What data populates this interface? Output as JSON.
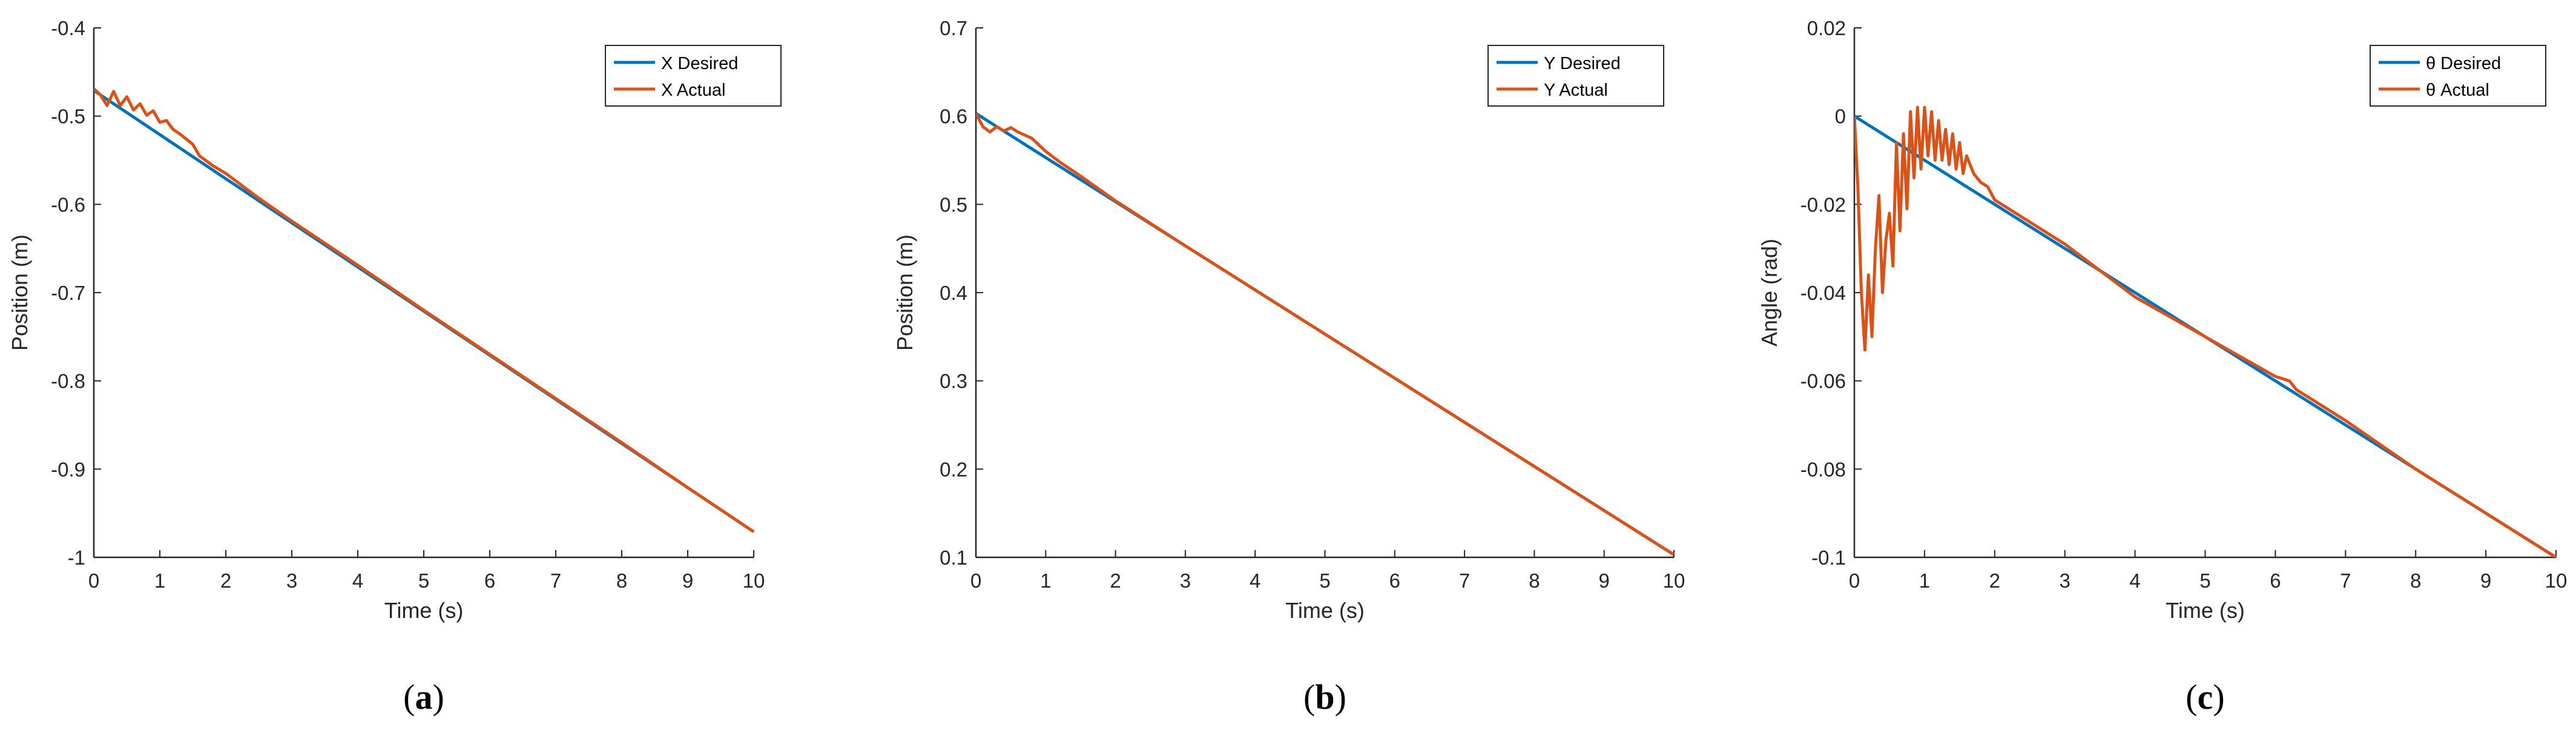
{
  "figure": {
    "panels": [
      {
        "id": "a",
        "caption": "(a)"
      },
      {
        "id": "b",
        "caption": "(b)"
      },
      {
        "id": "c",
        "caption": "(c)"
      }
    ]
  },
  "colors": {
    "desired": "#0072BD",
    "actual": "#D95319",
    "axis": "#262626"
  },
  "chart_data": [
    {
      "type": "line",
      "panel": "a",
      "xlabel": "Time (s)",
      "ylabel": "Position (m)",
      "xlim": [
        0,
        10
      ],
      "ylim": [
        -1,
        -0.4
      ],
      "xticks": [
        0,
        1,
        2,
        3,
        4,
        5,
        6,
        7,
        8,
        9,
        10
      ],
      "yticks": [
        -1,
        -0.9,
        -0.8,
        -0.7,
        -0.6,
        -0.5,
        -0.4
      ],
      "grid": false,
      "legend_position": "top-right",
      "series": [
        {
          "name": "X Desired",
          "color": "#0072BD",
          "x": [
            0,
            10
          ],
          "y": [
            -0.471,
            -0.971
          ]
        },
        {
          "name": "X Actual",
          "color": "#D95319",
          "x": [
            0,
            0.1,
            0.2,
            0.3,
            0.4,
            0.5,
            0.6,
            0.7,
            0.8,
            0.9,
            1.0,
            1.1,
            1.2,
            1.3,
            1.4,
            1.5,
            1.6,
            1.8,
            2.0,
            2.5,
            3,
            4,
            5,
            6,
            7,
            8,
            9,
            10
          ],
          "y": [
            -0.469,
            -0.476,
            -0.488,
            -0.472,
            -0.488,
            -0.478,
            -0.493,
            -0.486,
            -0.499,
            -0.494,
            -0.507,
            -0.505,
            -0.515,
            -0.52,
            -0.526,
            -0.532,
            -0.545,
            -0.556,
            -0.565,
            -0.593,
            -0.619,
            -0.669,
            -0.72,
            -0.77,
            -0.82,
            -0.87,
            -0.921,
            -0.971
          ]
        }
      ]
    },
    {
      "type": "line",
      "panel": "b",
      "xlabel": "Time (s)",
      "ylabel": "Position (m)",
      "xlim": [
        0,
        10
      ],
      "ylim": [
        0.1,
        0.7
      ],
      "xticks": [
        0,
        1,
        2,
        3,
        4,
        5,
        6,
        7,
        8,
        9,
        10
      ],
      "yticks": [
        0.1,
        0.2,
        0.3,
        0.4,
        0.5,
        0.6,
        0.7
      ],
      "grid": false,
      "legend_position": "top-right",
      "series": [
        {
          "name": "Y Desired",
          "color": "#0072BD",
          "x": [
            0,
            10
          ],
          "y": [
            0.603,
            0.103
          ]
        },
        {
          "name": "Y Actual",
          "color": "#D95319",
          "x": [
            0,
            0.1,
            0.2,
            0.3,
            0.4,
            0.5,
            0.6,
            0.8,
            1.0,
            1.2,
            1.5,
            2.0,
            3,
            4,
            5,
            6,
            7,
            8,
            9,
            10
          ],
          "y": [
            0.603,
            0.588,
            0.582,
            0.588,
            0.583,
            0.587,
            0.582,
            0.575,
            0.56,
            0.548,
            0.532,
            0.504,
            0.453,
            0.403,
            0.353,
            0.303,
            0.253,
            0.203,
            0.153,
            0.103
          ]
        }
      ]
    },
    {
      "type": "line",
      "panel": "c",
      "xlabel": "Time (s)",
      "ylabel": "Angle (rad)",
      "xlim": [
        0,
        10
      ],
      "ylim": [
        -0.1,
        0.02
      ],
      "xticks": [
        0,
        1,
        2,
        3,
        4,
        5,
        6,
        7,
        8,
        9,
        10
      ],
      "yticks": [
        -0.1,
        -0.08,
        -0.06,
        -0.04,
        -0.02,
        0,
        0.02
      ],
      "grid": false,
      "legend_position": "top-right",
      "series": [
        {
          "name": "θ Desired",
          "color": "#0072BD",
          "x": [
            0,
            10
          ],
          "y": [
            0,
            -0.1
          ]
        },
        {
          "name": "θ Actual",
          "color": "#D95319",
          "x": [
            0,
            0.05,
            0.1,
            0.15,
            0.2,
            0.25,
            0.3,
            0.35,
            0.4,
            0.45,
            0.5,
            0.55,
            0.6,
            0.65,
            0.7,
            0.75,
            0.8,
            0.85,
            0.9,
            0.95,
            1.0,
            1.05,
            1.1,
            1.15,
            1.2,
            1.25,
            1.3,
            1.35,
            1.4,
            1.45,
            1.5,
            1.55,
            1.6,
            1.7,
            1.8,
            1.9,
            2.0,
            2.2,
            2.5,
            3.0,
            3.5,
            4.0,
            5.0,
            6.0,
            6.2,
            6.3,
            7.0,
            8.0,
            9.0,
            10.0
          ],
          "y": [
            0,
            -0.016,
            -0.04,
            -0.053,
            -0.036,
            -0.05,
            -0.03,
            -0.018,
            -0.04,
            -0.028,
            -0.022,
            -0.034,
            -0.006,
            -0.026,
            -0.004,
            -0.021,
            0.001,
            -0.014,
            0.002,
            -0.012,
            0.002,
            -0.009,
            0.001,
            -0.01,
            -0.001,
            -0.01,
            -0.003,
            -0.011,
            -0.004,
            -0.012,
            -0.006,
            -0.013,
            -0.009,
            -0.013,
            -0.015,
            -0.016,
            -0.019,
            -0.021,
            -0.024,
            -0.029,
            -0.035,
            -0.041,
            -0.05,
            -0.059,
            -0.06,
            -0.062,
            -0.069,
            -0.08,
            -0.09,
            -0.1
          ]
        }
      ]
    }
  ]
}
